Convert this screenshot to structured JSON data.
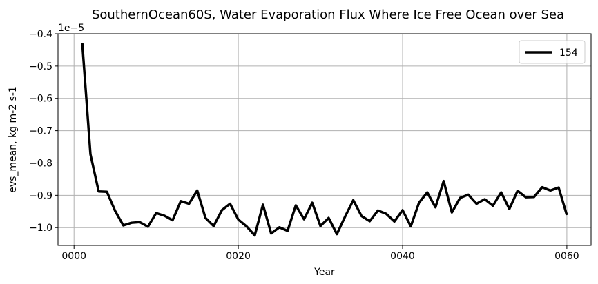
{
  "chart_data": {
    "type": "line",
    "title": "SouthernOcean60S, Water Evaporation Flux Where Ice Free Ocean over Sea",
    "xlabel": "Year",
    "ylabel": "evs_mean, kg m-2 s-1",
    "offset_label": "1e−5",
    "xlim": [
      -1.95,
      62.95
    ],
    "ylim": [
      -1.055,
      -0.4
    ],
    "xticks": [
      0,
      20,
      40,
      60
    ],
    "xtick_labels": [
      "0000",
      "0020",
      "0040",
      "0060"
    ],
    "yticks": [
      -0.4,
      -0.5,
      -0.6,
      -0.7,
      -0.8,
      -0.9,
      -1.0
    ],
    "ytick_labels": [
      "−0.4",
      "−0.5",
      "−0.6",
      "−0.7",
      "−0.8",
      "−0.9",
      "−1.0"
    ],
    "grid": true,
    "legend_position": "top-right",
    "series": [
      {
        "name": "154",
        "color": "#000000",
        "x": [
          1,
          2,
          3,
          4,
          5,
          6,
          7,
          8,
          9,
          10,
          11,
          12,
          13,
          14,
          15,
          16,
          17,
          18,
          19,
          20,
          21,
          22,
          23,
          24,
          25,
          26,
          27,
          28,
          29,
          30,
          31,
          32,
          33,
          34,
          35,
          36,
          37,
          38,
          39,
          40,
          41,
          42,
          43,
          44,
          45,
          46,
          47,
          48,
          49,
          50,
          51,
          52,
          53,
          54,
          55,
          56,
          57,
          58,
          59,
          60
        ],
        "values": [
          -0.428,
          -0.773,
          -0.888,
          -0.889,
          -0.948,
          -0.993,
          -0.985,
          -0.983,
          -0.997,
          -0.955,
          -0.963,
          -0.977,
          -0.918,
          -0.926,
          -0.885,
          -0.97,
          -0.995,
          -0.946,
          -0.926,
          -0.975,
          -0.996,
          -1.024,
          -0.929,
          -1.018,
          -0.999,
          -1.01,
          -0.931,
          -0.974,
          -0.923,
          -0.995,
          -0.97,
          -1.02,
          -0.966,
          -0.915,
          -0.964,
          -0.98,
          -0.947,
          -0.957,
          -0.981,
          -0.946,
          -0.996,
          -0.923,
          -0.891,
          -0.937,
          -0.856,
          -0.953,
          -0.908,
          -0.898,
          -0.926,
          -0.912,
          -0.932,
          -0.891,
          -0.942,
          -0.886,
          -0.906,
          -0.905,
          -0.875,
          -0.885,
          -0.876,
          -0.961
        ]
      }
    ]
  }
}
